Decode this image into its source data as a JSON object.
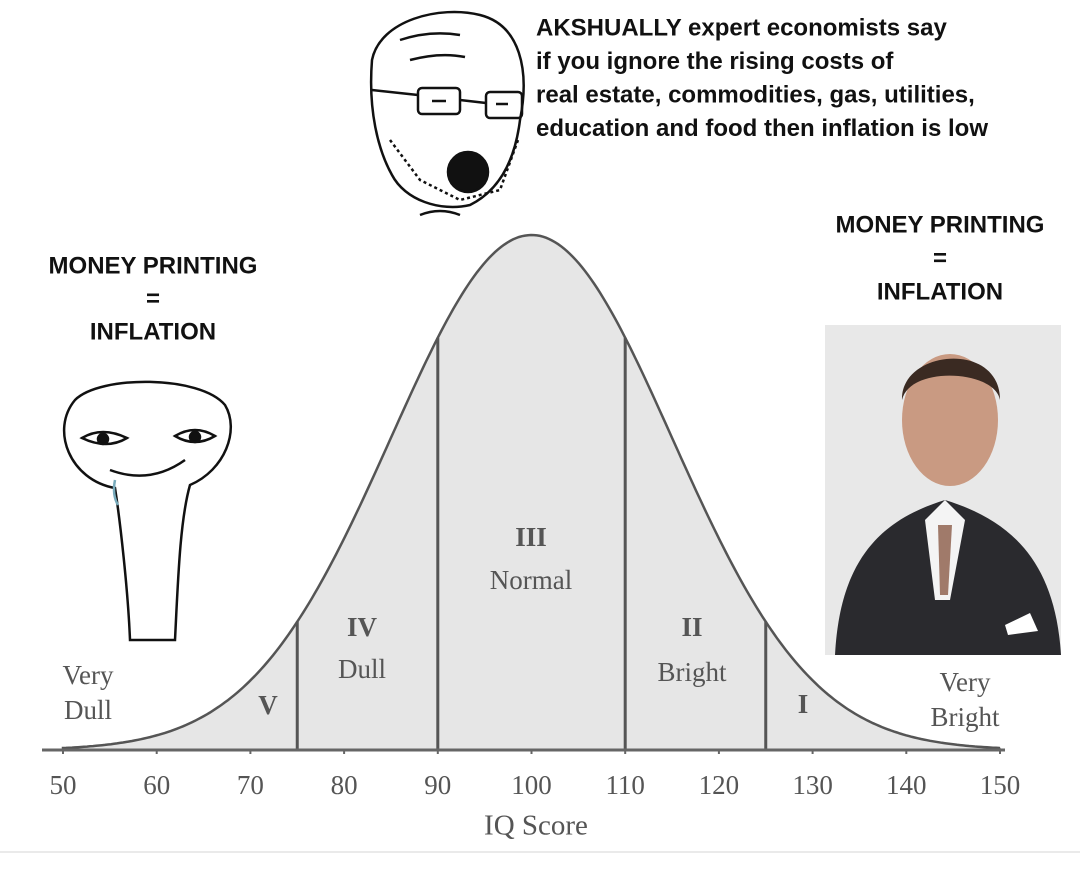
{
  "top_caption": {
    "lines": [
      "AKSHUALLY expert economists say",
      "if you ignore the rising costs of",
      "real estate, commodities, gas, utilities,",
      "education and food then inflation is low"
    ]
  },
  "left_caption": {
    "lines": [
      "MONEY PRINTING",
      "=",
      "INFLATION"
    ]
  },
  "right_caption": {
    "lines": [
      "MONEY PRINTING",
      "=",
      "INFLATION"
    ]
  },
  "chart": {
    "x_label": "IQ Score",
    "xlim": [
      50,
      150
    ],
    "xticks": [
      50,
      60,
      70,
      80,
      90,
      100,
      110,
      120,
      130,
      140,
      150
    ],
    "dividers": [
      75,
      90,
      110,
      125
    ],
    "regions": [
      {
        "numeral": "V"
      },
      {
        "numeral": "IV",
        "name": "Dull"
      },
      {
        "numeral": "III",
        "name": "Normal"
      },
      {
        "numeral": "II",
        "name": "Bright"
      },
      {
        "numeral": "I"
      }
    ],
    "tails": [
      [
        "Very",
        "Dull"
      ],
      [
        "Very",
        "Bright"
      ]
    ]
  }
}
